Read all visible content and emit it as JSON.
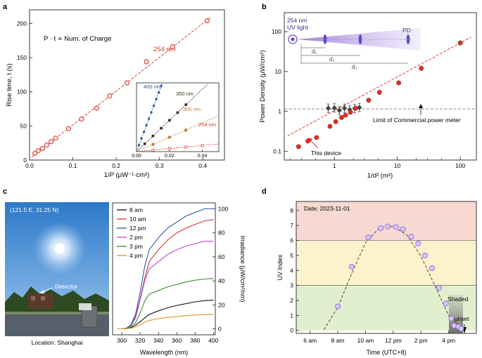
{
  "panels": {
    "a": {
      "label": "a",
      "xlabel_pre": "1/",
      "xlabel_var": "P",
      "xlabel_units": " (μW⁻¹·cm²)",
      "ylabel": "Rise time, t (s)",
      "annotation": "P · t ∝ Num. of Charge",
      "series_label": "254 nm",
      "xticks": [
        "0.0",
        "0.1",
        "0.2",
        "0.3",
        "0.4"
      ],
      "yticks": [
        "0",
        "50",
        "100",
        "150",
        "200"
      ],
      "inset": {
        "xticks": [
          "0.00",
          "0.02",
          "0.04"
        ],
        "labels": [
          "400 nm",
          "350 nm",
          "300 nm",
          "254 nm"
        ]
      }
    },
    "b": {
      "label": "b",
      "xlabel": "1/d² (m²)",
      "ylabel": "Power Density (μW/cm²)",
      "xticks": [
        "1",
        "10",
        "100"
      ],
      "yticks": [
        "0.1",
        "1",
        "10",
        "100"
      ],
      "uv_light_line1": "254 nm",
      "uv_light_line2": "UV light",
      "pd_label": "PD",
      "d_labels": [
        "d₁",
        "d₂",
        "d₃"
      ],
      "limit_label": "Limit of Commercial power meter",
      "device_label": "This device"
    },
    "c": {
      "label": "c",
      "coords": "(121.5 E, 31.25 N)",
      "detector_label": "Detector",
      "location_label": "Location: Shanghai",
      "xlabel": "Wavelength (nm)",
      "ylabel": "Irradiance (μW/cm²/nm)",
      "xticks": [
        "300",
        "320",
        "340",
        "360",
        "380",
        "400"
      ],
      "yticks": [
        "0",
        "20",
        "40",
        "60",
        "80",
        "100"
      ]
    },
    "d": {
      "label": "d",
      "date_label": "Date: 2023-11-01",
      "xlabel": "Time (UTC+8)",
      "ylabel": "UV Index",
      "xticks": [
        "6 am",
        "8 am",
        "10 am",
        "12 pm",
        "2 pm",
        "4 pm"
      ],
      "yticks": [
        "0",
        "1",
        "2",
        "3",
        "4",
        "5",
        "6",
        "7",
        "8"
      ],
      "shaded_label": "Shaded",
      "sunset_label": "Sunset"
    }
  },
  "colors": {
    "red": "#d8312a",
    "blue": "#2b57a7",
    "black": "#111111",
    "green": "#3a8a2e",
    "magenta": "#b54bc4",
    "orange": "#d49b1c",
    "purple": "#8f6ad8",
    "band_red": "#f7d9d2",
    "band_yellow": "#fbf3cc",
    "band_green": "#e2efcf"
  },
  "chart_data": [
    {
      "type": "scatter",
      "panel": "a",
      "title": "",
      "xlabel": "1/P (μW⁻¹·cm²)",
      "ylabel": "Rise time, t (s)",
      "xlim": [
        0,
        0.45
      ],
      "ylim": [
        0,
        220
      ],
      "series": [
        {
          "name": "254 nm",
          "x": [
            0.0125,
            0.02,
            0.03,
            0.04,
            0.05,
            0.06,
            0.09,
            0.12,
            0.155,
            0.185,
            0.225,
            0.27,
            0.33,
            0.41
          ],
          "y": [
            10,
            13.5,
            17,
            22,
            27,
            32,
            46,
            60,
            76,
            94,
            113,
            144,
            166,
            204
          ]
        }
      ],
      "fit": {
        "slope": 495,
        "intercept": 2
      }
    },
    {
      "type": "scatter",
      "panel": "a-inset",
      "xlim": [
        0,
        0.05
      ],
      "ylim": [
        0,
        220
      ],
      "series": [
        {
          "name": "400 nm",
          "slope": 14000,
          "x": [
            0.0015,
            0.003,
            0.0045,
            0.006,
            0.0075,
            0.009,
            0.0105,
            0.012,
            0.0135,
            0.015
          ]
        },
        {
          "name": "350 nm",
          "slope": 5000,
          "x": [
            0.005,
            0.01,
            0.015,
            0.02,
            0.025,
            0.03
          ]
        },
        {
          "name": "300 nm",
          "slope": 2300,
          "x": [
            0.01,
            0.02,
            0.03
          ]
        },
        {
          "name": "254 nm",
          "slope": 495,
          "x": [
            0.01,
            0.02,
            0.03,
            0.04
          ]
        }
      ]
    },
    {
      "type": "scatter",
      "panel": "b",
      "xlabel": "1/d² (m²)",
      "ylabel": "Power Density (μW/cm²)",
      "xscale": "log",
      "yscale": "log",
      "xlim": [
        0.16,
        180
      ],
      "ylim": [
        0.06,
        300
      ],
      "series": [
        {
          "name": "This device",
          "x": [
            0.27,
            0.38,
            0.52,
            0.85,
            1.05,
            1.3,
            1.5,
            1.8,
            2.2,
            3.5,
            5.2,
            10.5,
            24,
            100
          ],
          "y": [
            0.13,
            0.18,
            0.22,
            0.42,
            0.55,
            0.7,
            0.8,
            0.95,
            1.2,
            1.9,
            3,
            5.2,
            12,
            52
          ]
        },
        {
          "name": "Commercial power meter",
          "x": [
            0.8,
            1.0,
            1.2,
            1.45,
            1.75,
            2.1,
            2.5
          ],
          "y": [
            1.2,
            1.22,
            1.05,
            1.2,
            1.1,
            1.18,
            1.25
          ]
        }
      ],
      "limit_y": 1.15,
      "fit_slope": 0.52
    },
    {
      "type": "line",
      "panel": "c",
      "xlabel": "Wavelength (nm)",
      "ylabel": "Irradiance (μW/cm²/nm)",
      "xlim": [
        290,
        402
      ],
      "ylim": [
        -5,
        105
      ],
      "x": [
        295,
        300,
        305,
        310,
        315,
        320,
        325,
        330,
        340,
        350,
        360,
        370,
        380,
        390,
        400
      ],
      "series": [
        {
          "name": "8 am",
          "y": [
            0,
            0,
            0.2,
            1,
            3,
            6,
            9,
            12,
            15,
            17.5,
            19.5,
            21,
            22.5,
            23.5,
            24
          ]
        },
        {
          "name": "10 am",
          "y": [
            0,
            0,
            0.5,
            3,
            10,
            25,
            42,
            56,
            66,
            74,
            80,
            84,
            87,
            90,
            91
          ]
        },
        {
          "name": "12 pm",
          "y": [
            0,
            0,
            0.5,
            3.5,
            12,
            30,
            52,
            66,
            76,
            84,
            89,
            94,
            97,
            100,
            100
          ]
        },
        {
          "name": "2 pm",
          "y": [
            0,
            0,
            0.4,
            2.5,
            9,
            24,
            40,
            50,
            56,
            62,
            66,
            69,
            71,
            73,
            73
          ]
        },
        {
          "name": "3 pm",
          "y": [
            0,
            0,
            0.3,
            1.5,
            5,
            13,
            23,
            29,
            32,
            35,
            37,
            39,
            40.5,
            41.5,
            42
          ]
        },
        {
          "name": "4 pm",
          "y": [
            0,
            0,
            0.1,
            0.5,
            1.5,
            3.5,
            5.5,
            7,
            8.5,
            9.5,
            10.2,
            11,
            11.5,
            12,
            12
          ]
        }
      ]
    },
    {
      "type": "scatter",
      "panel": "d",
      "xlabel": "Time (UTC+8)",
      "ylabel": "UV Index",
      "xlim": [
        5,
        18
      ],
      "ylim": [
        -0.2,
        8.6
      ],
      "series": [
        {
          "name": "UV Index",
          "x": [
            8,
            9,
            10.2,
            11.1,
            11.6,
            12.2,
            12.7,
            13.3,
            13.8,
            14.3,
            14.8,
            15.3,
            15.8,
            16.2,
            16.4,
            16.7,
            16.9
          ],
          "y": [
            1.6,
            4.25,
            6.2,
            6.82,
            6.93,
            6.9,
            6.75,
            6.25,
            5.8,
            5,
            4.15,
            2.85,
            1.8,
            0.8,
            0.32,
            0.25,
            0.12
          ]
        }
      ],
      "envelope": {
        "x": [
          7,
          8,
          9,
          10,
          11,
          12,
          13,
          14,
          15,
          16,
          17
        ],
        "y": [
          0.05,
          1.55,
          3.8,
          5.85,
          6.85,
          6.95,
          6.35,
          4.95,
          3.0,
          1.0,
          0.1
        ]
      },
      "bands": [
        {
          "from": 0,
          "to": 3,
          "color": "green"
        },
        {
          "from": 3,
          "to": 6,
          "color": "yellow"
        },
        {
          "from": 6,
          "to": 8.6,
          "color": "red"
        }
      ]
    }
  ]
}
